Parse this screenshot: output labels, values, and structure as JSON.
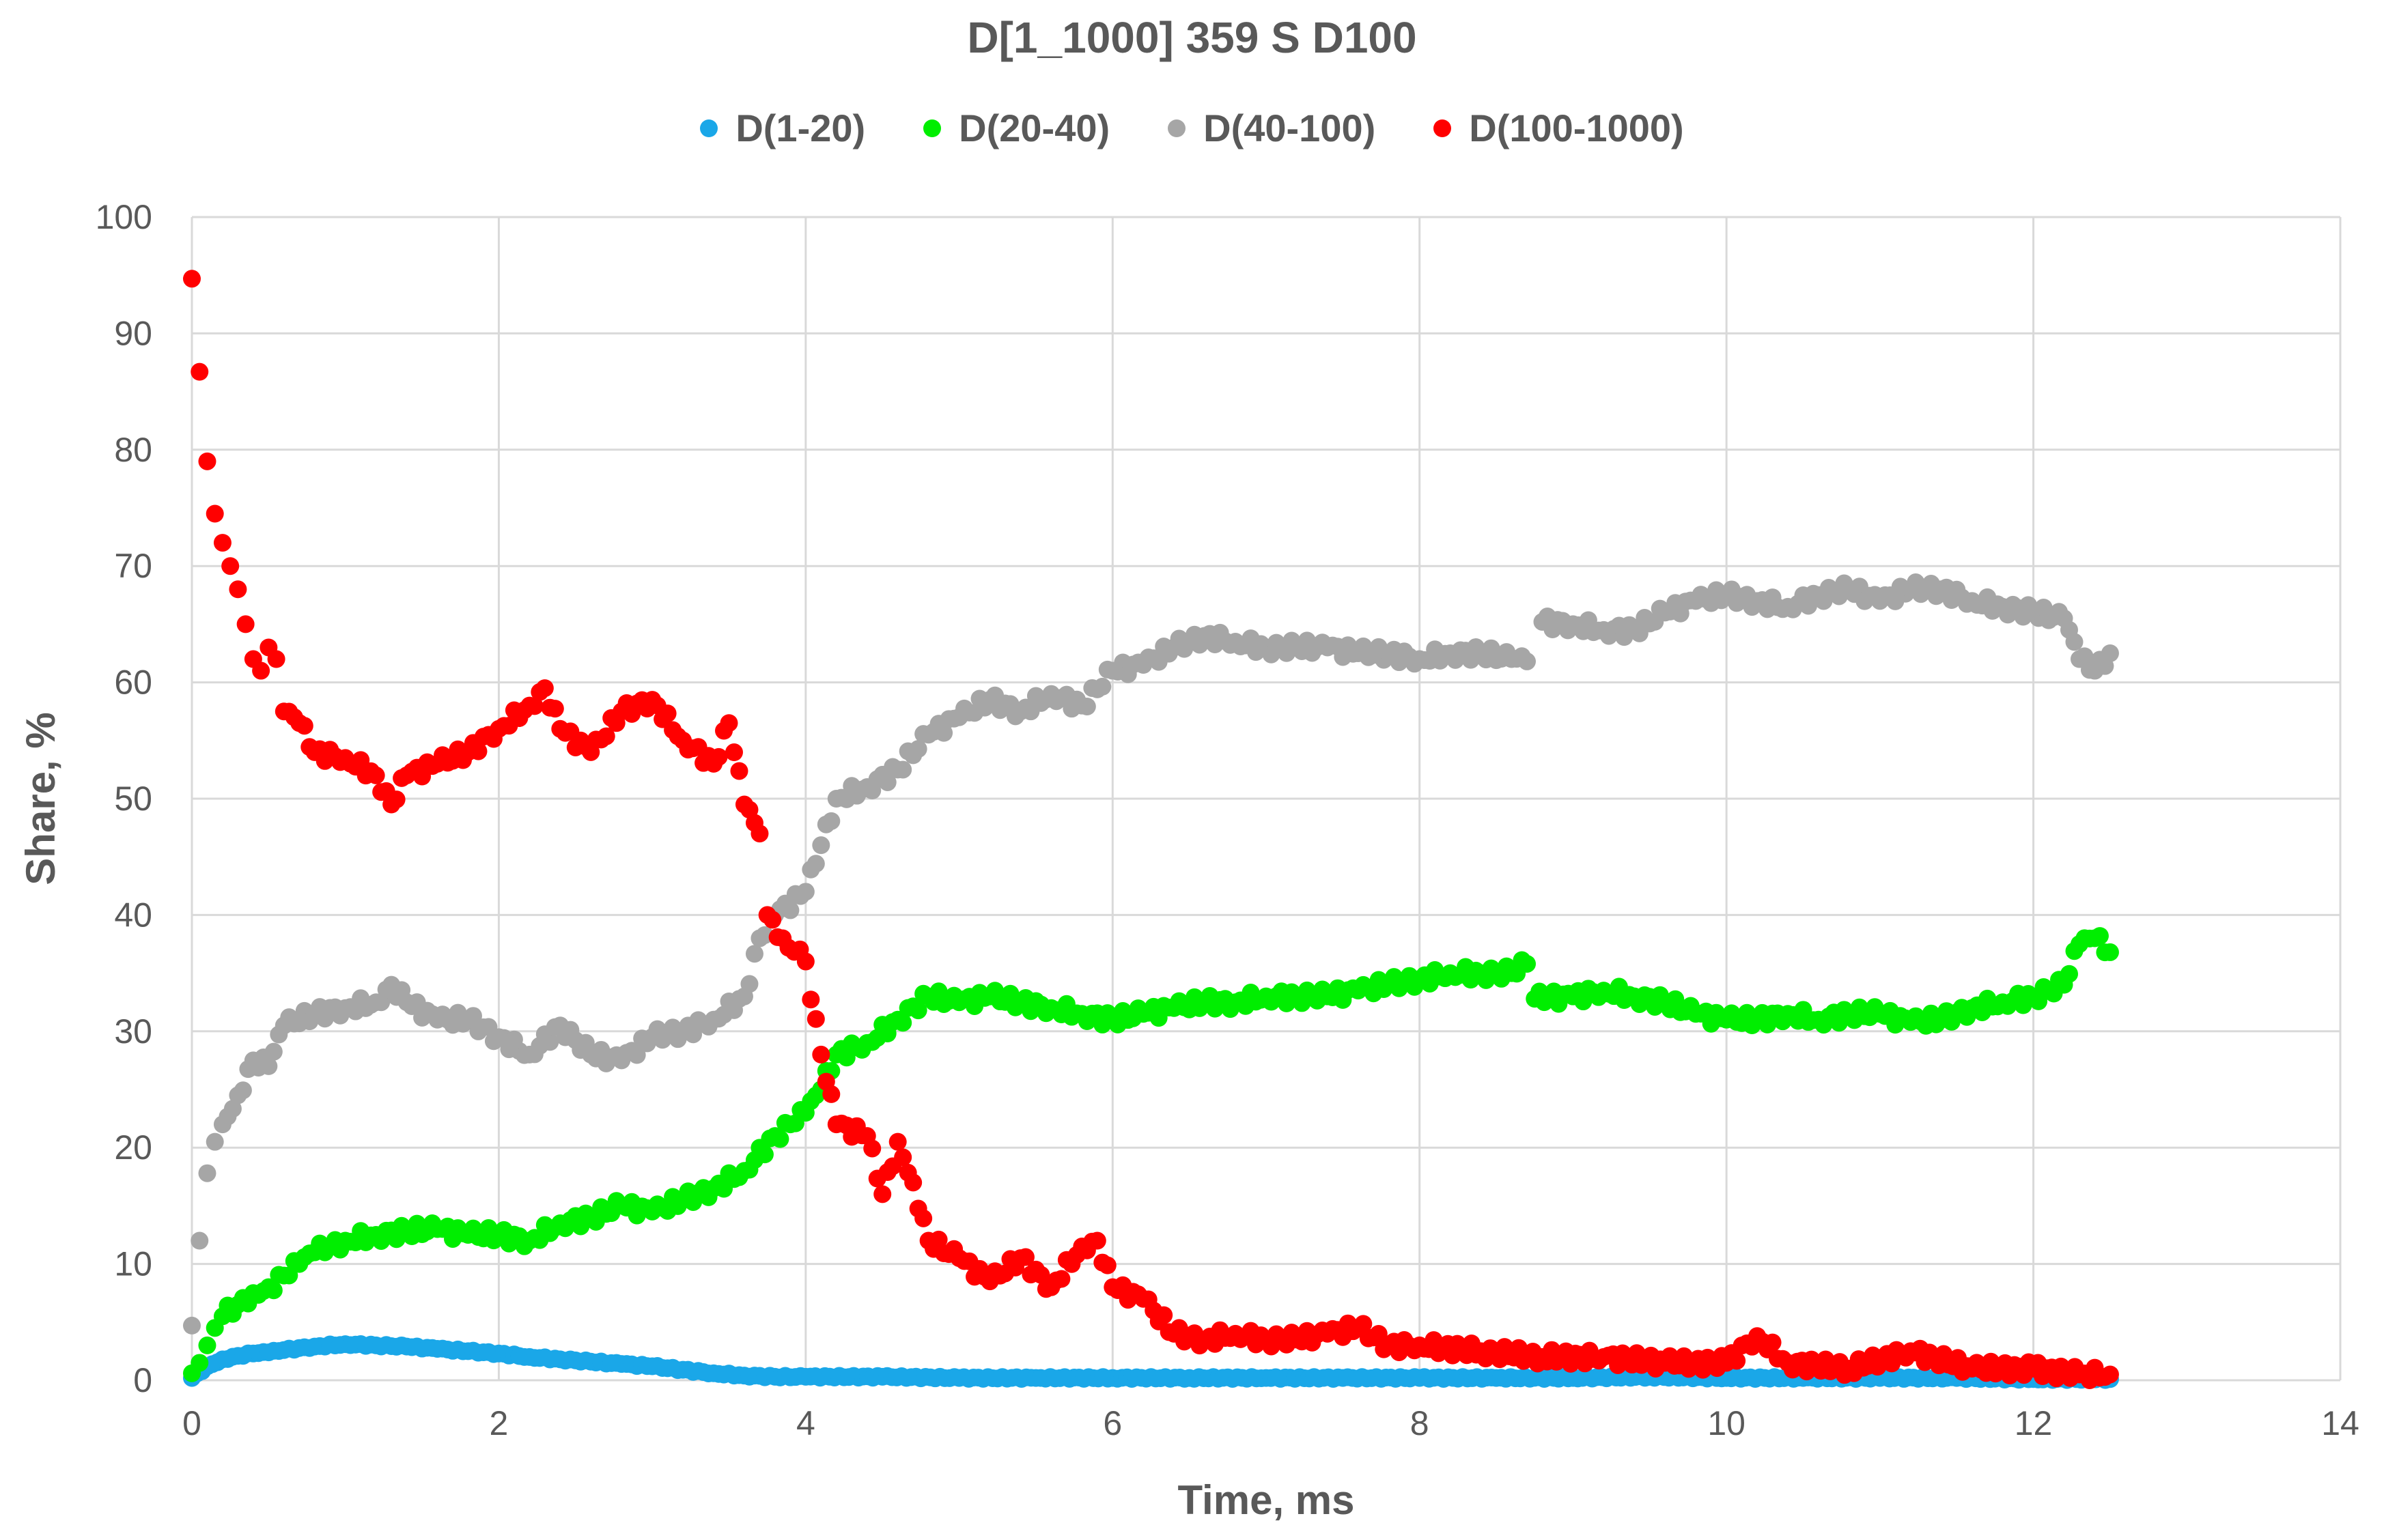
{
  "chart_data": {
    "type": "scatter",
    "title": "D[1_1000] 359 S D100",
    "xlabel": "Time, ms",
    "ylabel": "Share, %",
    "xlim": [
      0,
      14
    ],
    "ylim": [
      0,
      100
    ],
    "x_ticks": [
      "0",
      "2",
      "4",
      "6",
      "8",
      "10",
      "12",
      "14"
    ],
    "y_ticks": [
      "0",
      "10",
      "20",
      "30",
      "40",
      "50",
      "60",
      "70",
      "80",
      "90",
      "100"
    ],
    "grid": true,
    "legend_position": "top",
    "series": [
      {
        "name": "D(1-20)",
        "color": "#1aa7e8",
        "points": [
          [
            0,
            0.2
          ],
          [
            0.1,
            1.2
          ],
          [
            0.2,
            1.8
          ],
          [
            0.3,
            2.1
          ],
          [
            0.4,
            2.3
          ],
          [
            0.5,
            2.4
          ],
          [
            0.6,
            2.6
          ],
          [
            0.8,
            2.9
          ],
          [
            1.0,
            3.1
          ],
          [
            1.2,
            3.0
          ],
          [
            1.4,
            2.9
          ],
          [
            1.6,
            2.7
          ],
          [
            1.8,
            2.5
          ],
          [
            2.0,
            2.3
          ],
          [
            2.2,
            2.0
          ],
          [
            2.4,
            1.8
          ],
          [
            2.6,
            1.6
          ],
          [
            2.8,
            1.4
          ],
          [
            3.0,
            1.2
          ],
          [
            3.2,
            0.9
          ],
          [
            3.4,
            0.6
          ],
          [
            3.6,
            0.4
          ],
          [
            3.8,
            0.3
          ],
          [
            4.0,
            0.3
          ],
          [
            4.5,
            0.3
          ],
          [
            5.0,
            0.2
          ],
          [
            5.5,
            0.2
          ],
          [
            6.0,
            0.2
          ],
          [
            6.5,
            0.2
          ],
          [
            7.0,
            0.2
          ],
          [
            7.5,
            0.2
          ],
          [
            8.0,
            0.2
          ],
          [
            8.5,
            0.2
          ],
          [
            9.0,
            0.2
          ],
          [
            9.5,
            0.3
          ],
          [
            10.0,
            0.2
          ],
          [
            10.5,
            0.2
          ],
          [
            11.0,
            0.2
          ],
          [
            11.5,
            0.2
          ],
          [
            12.0,
            0.1
          ],
          [
            12.5,
            0.1
          ]
        ]
      },
      {
        "name": "D(20-40)",
        "color": "#00ee00",
        "points": [
          [
            0,
            0.6
          ],
          [
            0.05,
            1.5
          ],
          [
            0.1,
            3.0
          ],
          [
            0.15,
            4.5
          ],
          [
            0.2,
            5.5
          ],
          [
            0.3,
            6.5
          ],
          [
            0.4,
            7.5
          ],
          [
            0.5,
            8.0
          ],
          [
            0.6,
            9.0
          ],
          [
            0.7,
            10.0
          ],
          [
            0.8,
            11.0
          ],
          [
            0.9,
            11.5
          ],
          [
            1.0,
            12.0
          ],
          [
            1.2,
            12.5
          ],
          [
            1.4,
            12.8
          ],
          [
            1.6,
            13.0
          ],
          [
            1.8,
            12.5
          ],
          [
            2.0,
            12.5
          ],
          [
            2.2,
            12.0
          ],
          [
            2.4,
            13.5
          ],
          [
            2.6,
            14.0
          ],
          [
            2.8,
            15.0
          ],
          [
            3.0,
            14.5
          ],
          [
            3.2,
            15.5
          ],
          [
            3.4,
            16.5
          ],
          [
            3.6,
            18.0
          ],
          [
            3.8,
            21.0
          ],
          [
            3.9,
            22.0
          ],
          [
            4.0,
            23.0
          ],
          [
            4.1,
            25.0
          ],
          [
            4.2,
            28.0
          ],
          [
            4.4,
            29.0
          ],
          [
            4.6,
            31.0
          ],
          [
            4.8,
            33.0
          ],
          [
            5.0,
            32.5
          ],
          [
            5.2,
            33.0
          ],
          [
            5.4,
            32.5
          ],
          [
            5.6,
            32.0
          ],
          [
            5.8,
            31.5
          ],
          [
            6.0,
            31.0
          ],
          [
            6.2,
            31.5
          ],
          [
            6.4,
            32.0
          ],
          [
            6.6,
            32.5
          ],
          [
            6.8,
            32.5
          ],
          [
            7.0,
            33.0
          ],
          [
            7.2,
            33.0
          ],
          [
            7.4,
            33.0
          ],
          [
            7.6,
            33.5
          ],
          [
            7.8,
            34.0
          ],
          [
            8.0,
            34.5
          ],
          [
            8.2,
            35.0
          ],
          [
            8.4,
            35.0
          ],
          [
            8.6,
            35.0
          ],
          [
            8.7,
            35.8
          ],
          [
            8.75,
            32.8
          ],
          [
            9.0,
            33.0
          ],
          [
            9.2,
            33.5
          ],
          [
            9.4,
            33.0
          ],
          [
            9.6,
            32.5
          ],
          [
            9.8,
            31.5
          ],
          [
            10.0,
            31.0
          ],
          [
            10.2,
            31.0
          ],
          [
            10.4,
            31.5
          ],
          [
            10.6,
            31.0
          ],
          [
            10.8,
            31.5
          ],
          [
            11.0,
            31.5
          ],
          [
            11.2,
            30.8
          ],
          [
            11.4,
            31.0
          ],
          [
            11.6,
            32.0
          ],
          [
            11.8,
            32.5
          ],
          [
            12.0,
            33.0
          ],
          [
            12.2,
            34.0
          ],
          [
            12.3,
            37.5
          ],
          [
            12.4,
            38.0
          ],
          [
            12.5,
            36.8
          ]
        ]
      },
      {
        "name": "D(40-100)",
        "color": "#a6a6a6",
        "points": [
          [
            0,
            4.7
          ],
          [
            0.05,
            12.0
          ],
          [
            0.1,
            17.8
          ],
          [
            0.15,
            20.5
          ],
          [
            0.2,
            22.0
          ],
          [
            0.3,
            24.5
          ],
          [
            0.4,
            27.5
          ],
          [
            0.5,
            27.0
          ],
          [
            0.6,
            30.5
          ],
          [
            0.8,
            31.5
          ],
          [
            1.0,
            32.0
          ],
          [
            1.2,
            32.5
          ],
          [
            1.3,
            34.0
          ],
          [
            1.4,
            32.5
          ],
          [
            1.6,
            31.0
          ],
          [
            1.8,
            31.0
          ],
          [
            2.0,
            29.5
          ],
          [
            2.2,
            28.0
          ],
          [
            2.4,
            30.5
          ],
          [
            2.6,
            28.0
          ],
          [
            2.8,
            27.5
          ],
          [
            3.0,
            29.5
          ],
          [
            3.2,
            30.0
          ],
          [
            3.4,
            31.0
          ],
          [
            3.6,
            33.0
          ],
          [
            3.7,
            38.0
          ],
          [
            3.8,
            40.0
          ],
          [
            4.0,
            42.0
          ],
          [
            4.1,
            46.0
          ],
          [
            4.2,
            50.0
          ],
          [
            4.4,
            51.0
          ],
          [
            4.6,
            52.5
          ],
          [
            4.8,
            55.5
          ],
          [
            5.0,
            57.0
          ],
          [
            5.2,
            58.5
          ],
          [
            5.4,
            57.5
          ],
          [
            5.6,
            59.0
          ],
          [
            5.8,
            58.0
          ],
          [
            6.0,
            61.0
          ],
          [
            6.2,
            61.5
          ],
          [
            6.4,
            63.0
          ],
          [
            6.6,
            64.0
          ],
          [
            6.8,
            63.5
          ],
          [
            7.0,
            63.0
          ],
          [
            7.2,
            63.0
          ],
          [
            7.4,
            63.0
          ],
          [
            7.6,
            62.5
          ],
          [
            7.8,
            62.5
          ],
          [
            8.0,
            62.0
          ],
          [
            8.2,
            62.5
          ],
          [
            8.4,
            62.5
          ],
          [
            8.6,
            62.0
          ],
          [
            8.7,
            61.8
          ],
          [
            8.8,
            65.2
          ],
          [
            9.0,
            65.0
          ],
          [
            9.2,
            64.5
          ],
          [
            9.4,
            64.5
          ],
          [
            9.6,
            66.0
          ],
          [
            9.8,
            67.0
          ],
          [
            10.0,
            67.5
          ],
          [
            10.2,
            67.0
          ],
          [
            10.4,
            66.5
          ],
          [
            10.6,
            67.5
          ],
          [
            10.8,
            68.0
          ],
          [
            11.0,
            67.0
          ],
          [
            11.2,
            68.0
          ],
          [
            11.4,
            68.0
          ],
          [
            11.6,
            67.0
          ],
          [
            11.8,
            66.5
          ],
          [
            12.0,
            66.0
          ],
          [
            12.2,
            65.5
          ],
          [
            12.3,
            62.0
          ],
          [
            12.4,
            61.0
          ],
          [
            12.5,
            62.5
          ]
        ]
      },
      {
        "name": "D(100-1000)",
        "color": "#ff0000",
        "points": [
          [
            0,
            94.7
          ],
          [
            0.05,
            86.7
          ],
          [
            0.1,
            79.0
          ],
          [
            0.15,
            74.5
          ],
          [
            0.2,
            72.0
          ],
          [
            0.25,
            70.0
          ],
          [
            0.3,
            68.0
          ],
          [
            0.35,
            65.0
          ],
          [
            0.4,
            62.0
          ],
          [
            0.45,
            61.0
          ],
          [
            0.5,
            63.0
          ],
          [
            0.55,
            62.0
          ],
          [
            0.6,
            57.5
          ],
          [
            0.7,
            56.5
          ],
          [
            0.8,
            54.0
          ],
          [
            1.0,
            53.5
          ],
          [
            1.2,
            52.0
          ],
          [
            1.3,
            49.5
          ],
          [
            1.4,
            52.0
          ],
          [
            1.6,
            53.0
          ],
          [
            1.8,
            54.0
          ],
          [
            2.0,
            56.0
          ],
          [
            2.2,
            58.0
          ],
          [
            2.3,
            59.5
          ],
          [
            2.4,
            56.0
          ],
          [
            2.6,
            54.0
          ],
          [
            2.8,
            57.5
          ],
          [
            3.0,
            58.5
          ],
          [
            3.2,
            55.0
          ],
          [
            3.4,
            53.0
          ],
          [
            3.5,
            56.5
          ],
          [
            3.6,
            49.5
          ],
          [
            3.7,
            47.0
          ],
          [
            3.75,
            40.0
          ],
          [
            3.85,
            38.0
          ],
          [
            4.0,
            36.0
          ],
          [
            4.1,
            28.0
          ],
          [
            4.2,
            22.0
          ],
          [
            4.4,
            21.0
          ],
          [
            4.5,
            16.0
          ],
          [
            4.6,
            20.5
          ],
          [
            4.7,
            17.0
          ],
          [
            4.8,
            12.0
          ],
          [
            5.0,
            10.5
          ],
          [
            5.2,
            8.5
          ],
          [
            5.4,
            10.5
          ],
          [
            5.6,
            8.0
          ],
          [
            5.8,
            11.5
          ],
          [
            5.9,
            12.0
          ],
          [
            6.0,
            8.0
          ],
          [
            6.2,
            7.0
          ],
          [
            6.4,
            4.0
          ],
          [
            6.6,
            3.5
          ],
          [
            6.8,
            4.0
          ],
          [
            7.0,
            3.5
          ],
          [
            7.2,
            3.5
          ],
          [
            7.4,
            4.0
          ],
          [
            7.6,
            4.5
          ],
          [
            7.8,
            3.0
          ],
          [
            8.0,
            3.0
          ],
          [
            8.4,
            2.5
          ],
          [
            8.8,
            2.0
          ],
          [
            9.2,
            2.0
          ],
          [
            9.6,
            1.5
          ],
          [
            10.0,
            1.5
          ],
          [
            10.2,
            3.8
          ],
          [
            10.4,
            1.5
          ],
          [
            10.8,
            1.0
          ],
          [
            11.2,
            2.5
          ],
          [
            11.6,
            1.0
          ],
          [
            12.0,
            1.0
          ],
          [
            12.3,
            0.5
          ],
          [
            12.5,
            0.5
          ]
        ]
      }
    ]
  }
}
